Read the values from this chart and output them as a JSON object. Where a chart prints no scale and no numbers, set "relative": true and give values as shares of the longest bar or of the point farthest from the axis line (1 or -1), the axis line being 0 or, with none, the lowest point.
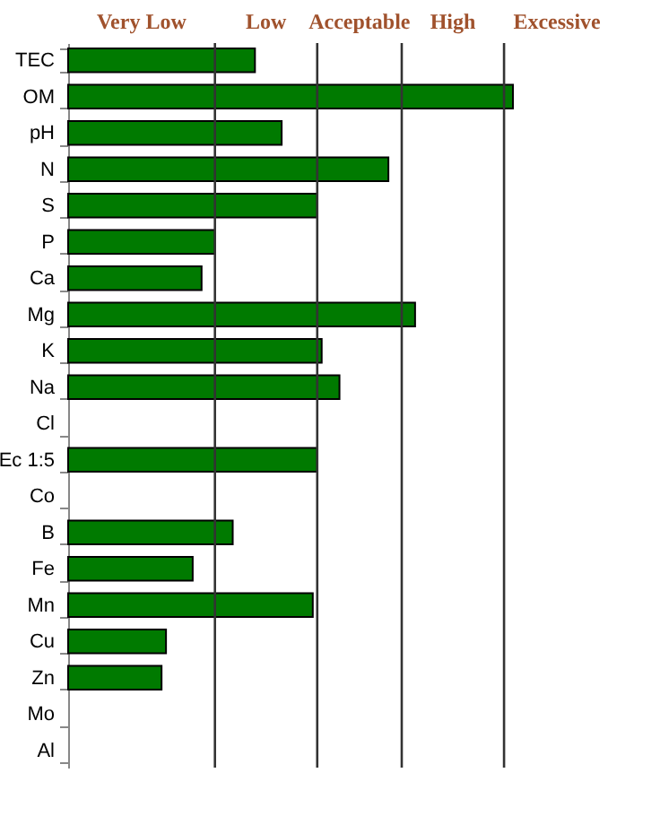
{
  "chart_data": {
    "type": "bar",
    "orientation": "horizontal",
    "relative": true,
    "categories": [
      "TEC",
      "OM",
      "pH",
      "N",
      "S",
      "P",
      "Ca",
      "Mg",
      "K",
      "Na",
      "Cl",
      "Ec 1:5",
      "Co",
      "B",
      "Fe",
      "Mn",
      "Cu",
      "Zn",
      "Mo",
      "Al"
    ],
    "values": [
      0.42,
      1,
      0.48,
      0.72,
      0.56,
      0.33,
      0.3,
      0.78,
      0.57,
      0.61,
      null,
      0.56,
      null,
      0.37,
      0.28,
      0.55,
      0.22,
      0.21,
      null,
      null
    ],
    "color": "#007a00",
    "ref_lines": [
      {
        "axis": "x",
        "value": 0.33
      },
      {
        "axis": "x",
        "value": 0.56
      },
      {
        "axis": "x",
        "value": 0.75
      },
      {
        "axis": "x",
        "value": 0.98
      }
    ],
    "annotations": [
      "Very Low",
      "Low",
      "Acceptable",
      "High",
      "Excessive"
    ]
  }
}
